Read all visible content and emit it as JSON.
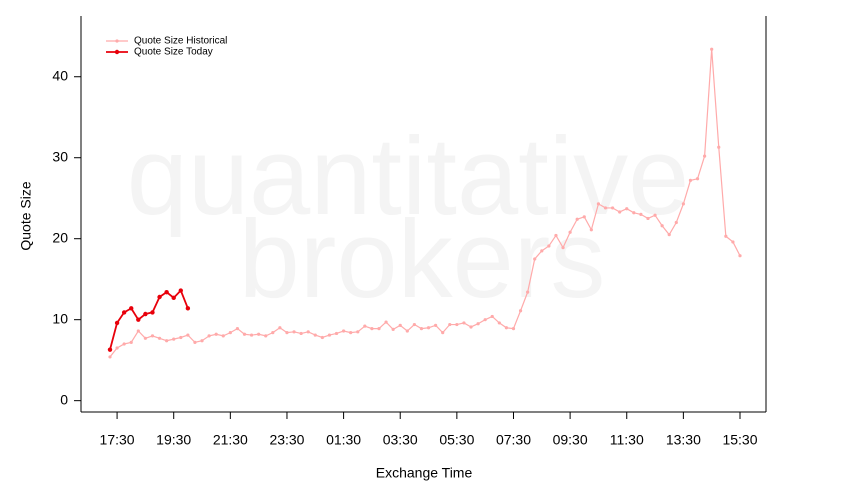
{
  "chart_data": {
    "type": "line",
    "watermark": [
      "quantitative",
      "brokers"
    ],
    "x_label": "Exchange Time",
    "y_label": "Quote Size",
    "categories": [
      null,
      "17:30",
      null,
      null,
      null,
      null,
      null,
      null,
      null,
      "19:30",
      null,
      null,
      null,
      null,
      null,
      null,
      null,
      "21:30",
      null,
      null,
      null,
      null,
      null,
      null,
      null,
      "23:30",
      null,
      null,
      null,
      null,
      null,
      null,
      null,
      "01:30",
      null,
      null,
      null,
      null,
      null,
      null,
      null,
      "03:30",
      null,
      null,
      null,
      null,
      null,
      null,
      null,
      "05:30",
      null,
      null,
      null,
      null,
      null,
      null,
      null,
      "07:30",
      null,
      null,
      null,
      null,
      null,
      null,
      null,
      "09:30",
      null,
      null,
      null,
      null,
      null,
      null,
      null,
      "11:30",
      null,
      null,
      null,
      null,
      null,
      null,
      null,
      "13:30",
      null,
      null,
      null,
      null,
      null,
      null,
      null,
      "15:30"
    ],
    "series": [
      {
        "name": "Quote Size Historical",
        "color": "#ffaaaa",
        "values": [
          5.4,
          6.5,
          7.0,
          7.2,
          8.6,
          7.7,
          8.0,
          7.7,
          7.4,
          7.6,
          7.8,
          8.1,
          7.2,
          7.4,
          8.0,
          8.2,
          8.0,
          8.4,
          8.9,
          8.2,
          8.1,
          8.2,
          8.0,
          8.4,
          9.0,
          8.4,
          8.5,
          8.3,
          8.5,
          8.1,
          7.8,
          8.1,
          8.3,
          8.6,
          8.4,
          8.5,
          9.2,
          8.9,
          8.9,
          9.7,
          8.8,
          9.3,
          8.6,
          9.4,
          8.9,
          9.0,
          9.3,
          8.4,
          9.4,
          9.4,
          9.6,
          9.1,
          9.5,
          10.0,
          10.4,
          9.6,
          9.0,
          8.9,
          11.1,
          13.4,
          17.5,
          18.5,
          19.1,
          20.4,
          18.9,
          20.8,
          22.4,
          22.7,
          21.1,
          24.3,
          23.8,
          23.8,
          23.3,
          23.7,
          23.2,
          23.0,
          22.5,
          22.9,
          21.6,
          20.5,
          22.0,
          24.3,
          27.2,
          27.4,
          30.2,
          43.4,
          31.3,
          20.3,
          19.6,
          17.9
        ]
      },
      {
        "name": "Quote Size Today",
        "color": "#e8000b",
        "values": [
          6.3,
          9.6,
          10.9,
          11.4,
          10.0,
          10.7,
          10.9,
          12.8,
          13.4,
          12.7,
          13.6,
          11.4,
          null,
          null,
          null,
          null,
          null,
          null,
          null,
          null,
          null,
          null,
          null,
          null,
          null,
          null,
          null,
          null,
          null,
          null,
          null,
          null,
          null,
          null,
          null,
          null,
          null,
          null,
          null,
          null,
          null,
          null,
          null,
          null,
          null,
          null,
          null,
          null,
          null,
          null,
          null,
          null,
          null,
          null,
          null,
          null,
          null,
          null,
          null,
          null,
          null,
          null,
          null,
          null,
          null,
          null,
          null,
          null,
          null,
          null,
          null,
          null,
          null,
          null,
          null,
          null,
          null,
          null,
          null,
          null,
          null,
          null,
          null,
          null,
          null,
          null,
          null,
          null,
          null,
          null
        ]
      }
    ],
    "ylim": [
      -1.4,
      47.5
    ],
    "yticks": [
      0,
      10,
      20,
      30,
      40
    ],
    "legend": "top-left"
  }
}
